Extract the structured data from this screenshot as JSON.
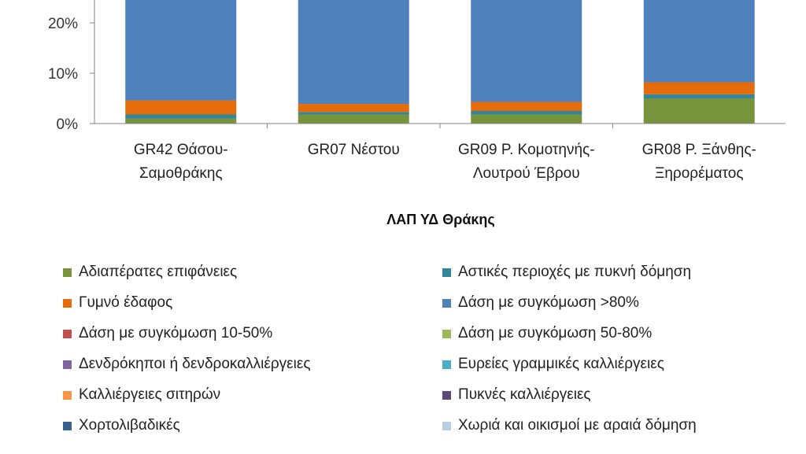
{
  "chart_data": {
    "type": "bar",
    "stacked": true,
    "title": "",
    "xlabel": "ΛΑΠ ΥΔ Θράκης",
    "ylabel": "",
    "y_ticks": [
      "0%",
      "10%",
      "20%"
    ],
    "ylim": [
      0,
      100
    ],
    "categories": [
      [
        "GR42 Θάσου-",
        "Σαμοθράκης"
      ],
      [
        "GR07 Νέστου"
      ],
      [
        "GR09 Ρ. Κομοτηνής-",
        "Λουτρού Έβρου"
      ],
      [
        "GR08 Ρ. Ξάνθης-",
        "Ξηρορέματος"
      ]
    ],
    "legend_position": "bottom",
    "series": [
      {
        "name": "Αδιαπέρατες επιφάνειες",
        "color": "#77933C",
        "values": [
          1.0,
          1.8,
          1.8,
          5.0
        ]
      },
      {
        "name": "Αστικές περιοχές με πυκνή δόμηση",
        "color": "#31859C",
        "values": [
          0.8,
          0.5,
          0.7,
          0.8
        ]
      },
      {
        "name": "Γυμνό έδαφος",
        "color": "#E46C0A",
        "values": [
          2.8,
          1.6,
          1.8,
          2.4
        ]
      },
      {
        "name": "Δάση με συγκόμωση >80%",
        "color": "#4F81BD",
        "values": [
          95.4,
          96.1,
          95.7,
          91.8
        ]
      },
      {
        "name": "Δάση με συγκόμωση 10-50%",
        "color": "#C0504D",
        "values": [
          0,
          0,
          0,
          0
        ]
      },
      {
        "name": "Δάση με συγκόμωση 50-80%",
        "color": "#9BBB59",
        "values": [
          0,
          0,
          0,
          0
        ]
      },
      {
        "name": "Δενδρόκηποι ή δενδροκαλλιέργειες",
        "color": "#8064A2",
        "values": [
          0,
          0,
          0,
          0
        ]
      },
      {
        "name": "Ευρείες γραμμικές καλλιέργειες",
        "color": "#4BACC6",
        "values": [
          0,
          0,
          0,
          0
        ]
      },
      {
        "name": "Καλλιέργειες σιτηρών",
        "color": "#F79646",
        "values": [
          0,
          0,
          0,
          0
        ]
      },
      {
        "name": "Πυκνές καλλιέργειες",
        "color": "#5F497A",
        "values": [
          0,
          0,
          0,
          0
        ]
      },
      {
        "name": "Χορτολιβαδικές",
        "color": "#366092",
        "values": [
          0,
          0,
          0,
          0
        ]
      },
      {
        "name": "Χωριά και οικισμοί με αραιά δόμηση",
        "color": "#B9CDE5",
        "values": [
          0,
          0,
          0,
          0
        ]
      }
    ]
  }
}
